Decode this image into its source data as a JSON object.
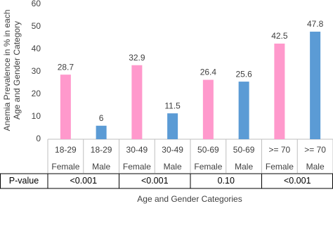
{
  "chart_data": {
    "type": "bar",
    "ylabel": [
      "Anemia Prevalence in % in each",
      "Age and Gender Category"
    ],
    "xlabel": "Age and Gender Categories",
    "categories": [
      "18-29",
      "18-29",
      "30-49",
      "30-49",
      "50-69",
      "50-69",
      ">= 70",
      ">= 70"
    ],
    "category_sublabels": [
      "Female",
      "Male",
      "Female",
      "Male",
      "Female",
      "Male",
      "Female",
      "Male"
    ],
    "values": [
      28.7,
      6,
      32.9,
      11.5,
      26.4,
      25.6,
      42.5,
      47.8
    ],
    "colors": [
      "#ff99cc",
      "#5b9bd5",
      "#ff99cc",
      "#5b9bd5",
      "#ff99cc",
      "#5b9bd5",
      "#ff99cc",
      "#5b9bd5"
    ],
    "ylim": [
      0,
      60
    ],
    "yticks": [
      0,
      10,
      20,
      30,
      40,
      50,
      60
    ],
    "grid": false,
    "p_table": {
      "header": "P-value",
      "values": [
        "<0.001",
        "<0.001",
        "0.10",
        "<0.001"
      ]
    }
  }
}
